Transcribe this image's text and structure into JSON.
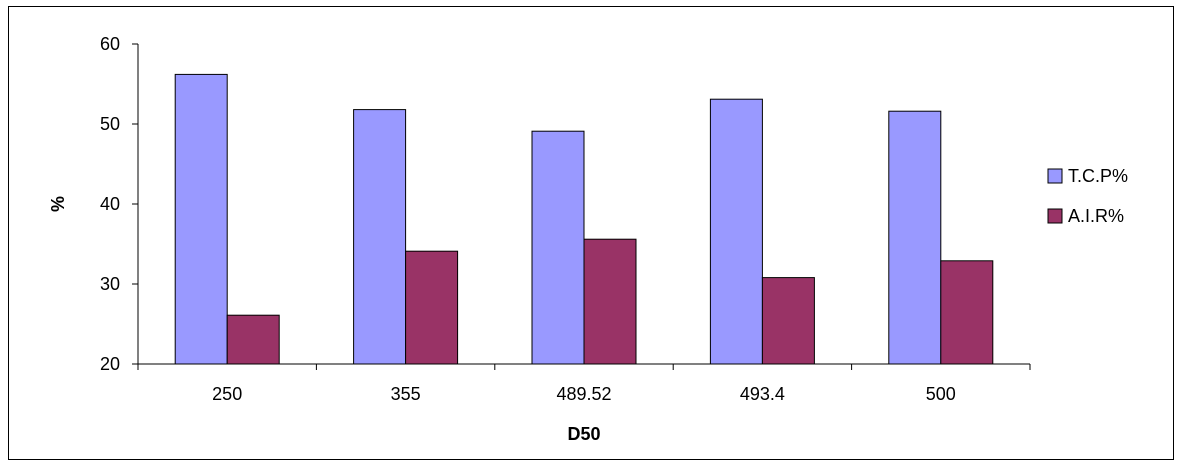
{
  "chart_data": {
    "type": "bar",
    "categories": [
      "250",
      "355",
      "489.52",
      "493.4",
      "500"
    ],
    "series": [
      {
        "name": "T.C.P%",
        "values": [
          56.2,
          51.8,
          49.1,
          53.1,
          51.6
        ],
        "color": "#9999ff"
      },
      {
        "name": "A.I.R%",
        "values": [
          26.1,
          34.1,
          35.6,
          30.8,
          32.9
        ],
        "color": "#993366"
      }
    ],
    "title": "",
    "xlabel": "D50",
    "ylabel": "%",
    "ylim": [
      20,
      60
    ],
    "yticks": [
      "20",
      "30",
      "40",
      "50",
      "60"
    ],
    "grid": false,
    "legend": "right"
  }
}
